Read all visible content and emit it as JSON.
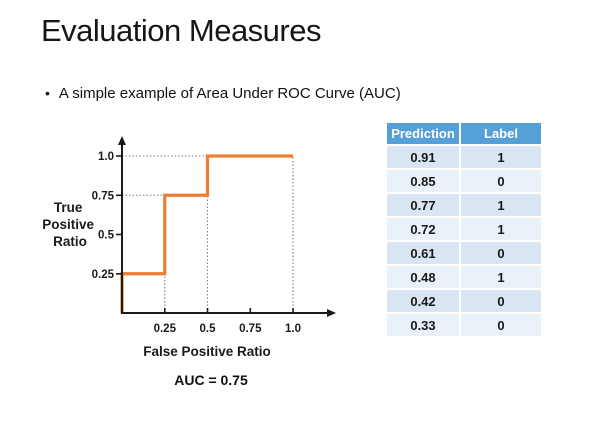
{
  "slide": {
    "title": "Evaluation Measures",
    "bullet": "A simple example of Area Under ROC Curve (AUC)"
  },
  "chart_data": {
    "type": "line",
    "title": "",
    "xlabel": "False Positive Ratio",
    "ylabel": "True Positive Ratio",
    "ylabel_lines": [
      "True",
      "Positive",
      "Ratio"
    ],
    "x_ticks": [
      "0.25",
      "0.5",
      "0.75",
      "1.0"
    ],
    "y_ticks": [
      "0.25",
      "0.5",
      "0.75",
      "1.0"
    ],
    "x_tick_values": [
      0.25,
      0.5,
      0.75,
      1.0
    ],
    "y_tick_values": [
      0.25,
      0.5,
      0.75,
      1.0
    ],
    "xlim": [
      0,
      1
    ],
    "ylim": [
      0,
      1
    ],
    "grid": "dotted-guides-only",
    "legend": "none",
    "curve": [
      [
        0,
        0
      ],
      [
        0,
        0.25
      ],
      [
        0.25,
        0.25
      ],
      [
        0.25,
        0.75
      ],
      [
        0.5,
        0.75
      ],
      [
        0.5,
        1.0
      ],
      [
        1.0,
        1.0
      ]
    ],
    "guides_vertical": [
      {
        "x": 0.25,
        "y0": 0,
        "y1": 0.75
      },
      {
        "x": 0.5,
        "y0": 0,
        "y1": 1.0
      },
      {
        "x": 1.0,
        "y0": 0,
        "y1": 1.0
      }
    ],
    "guides_horizontal": [
      {
        "y": 0.75,
        "x0": 0,
        "x1": 0.25
      },
      {
        "y": 1.0,
        "x0": 0,
        "x1": 0.5
      }
    ],
    "line_color": "#ED7D31",
    "annotation": "AUC = 0.75"
  },
  "table": {
    "headers": [
      "Prediction",
      "Label"
    ],
    "rows": [
      [
        "0.91",
        "1"
      ],
      [
        "0.85",
        "0"
      ],
      [
        "0.77",
        "1"
      ],
      [
        "0.72",
        "1"
      ],
      [
        "0.61",
        "0"
      ],
      [
        "0.48",
        "1"
      ],
      [
        "0.42",
        "0"
      ],
      [
        "0.33",
        "0"
      ]
    ],
    "colors": {
      "header_bg": "#55A0D7",
      "row_odd": "#D9E5F2",
      "row_even": "#EAF2F9",
      "header_text": "#FFFFFF"
    }
  }
}
